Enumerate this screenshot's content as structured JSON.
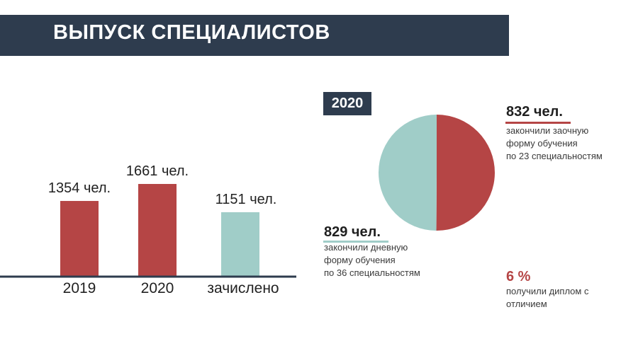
{
  "slide": {
    "title": "ВЫПУСК СПЕЦИАЛИСТОВ",
    "colors": {
      "dark": "#2e3c4e",
      "red": "#b54545",
      "teal": "#a0cdc8"
    }
  },
  "chart_data": [
    {
      "type": "bar",
      "categories": [
        "2019",
        "2020",
        "зачислено"
      ],
      "values": [
        1354,
        1661,
        1151
      ],
      "value_labels": [
        "1354 чел.",
        "1661 чел.",
        "1151 чел."
      ],
      "colors": [
        "#b54545",
        "#b54545",
        "#a0cdc8"
      ],
      "ylim": [
        0,
        1800
      ]
    },
    {
      "type": "pie",
      "title": "2020",
      "slices": [
        {
          "label": "закончили заочную форму обучения по 23 специальностям",
          "value": 832,
          "color": "#b54545"
        },
        {
          "label": "закончили дневную форму обучения по 36 специальностям",
          "value": 829,
          "color": "#a0cdc8"
        }
      ]
    }
  ],
  "stats": {
    "zaochnaya": {
      "number": "832 чел.",
      "desc": "закончили заочную\nформу обучения\nпо 23 специальностям"
    },
    "dnevnaya": {
      "number": "829 чел.",
      "desc": "закончили дневную\nформу обучения\nпо 36 специальностям"
    },
    "honors": {
      "number": "6 %",
      "desc": "получили диплом с\nотличием"
    }
  }
}
